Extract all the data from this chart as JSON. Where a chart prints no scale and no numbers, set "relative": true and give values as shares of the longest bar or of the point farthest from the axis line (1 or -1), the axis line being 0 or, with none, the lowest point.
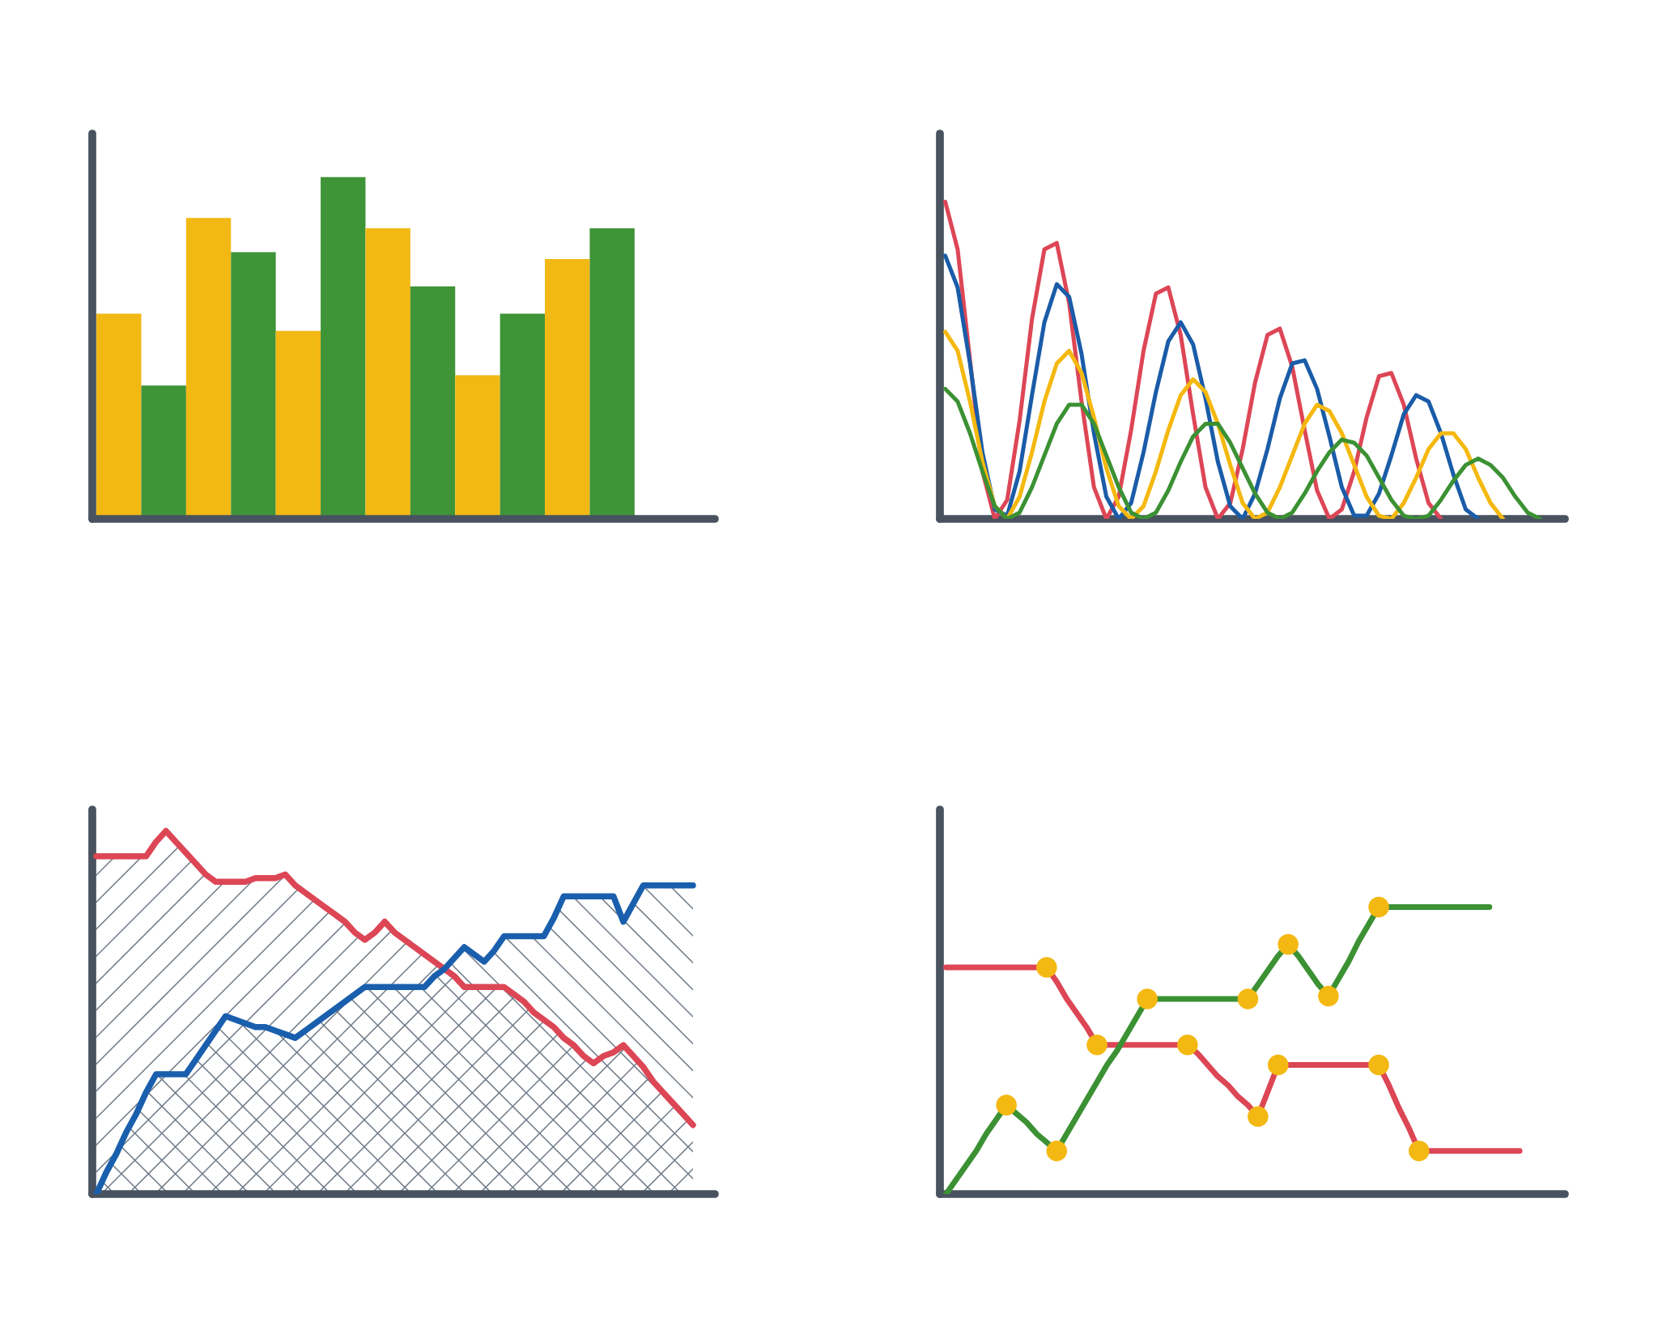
{
  "chart_data": [
    {
      "type": "bar",
      "relative": true,
      "categories": [
        null,
        null,
        null,
        null,
        null,
        null,
        null,
        null,
        null,
        null,
        null,
        null
      ],
      "values": [
        0.6,
        0.39,
        0.88,
        0.78,
        0.55,
        1.0,
        0.85,
        0.68,
        0.42,
        0.6,
        0.76,
        0.85
      ],
      "colors": [
        "#f2b813",
        "#3f9438",
        "#f2b813",
        "#3f9438",
        "#f2b813",
        "#3f9438",
        "#f2b813",
        "#3f9438",
        "#f2b813",
        "#3f9438",
        "#f2b813",
        "#3f9438"
      ]
    },
    {
      "type": "line",
      "relative": true,
      "categories": [
        null,
        null,
        null,
        null,
        null,
        null,
        null,
        null,
        null,
        null,
        null,
        null,
        null,
        null,
        null,
        null,
        null,
        null,
        null,
        null,
        null,
        null,
        null,
        null,
        null,
        null,
        null,
        null,
        null,
        null,
        null,
        null,
        null,
        null,
        null,
        null,
        null,
        null,
        null,
        null,
        null,
        null,
        null,
        null,
        null,
        null,
        null,
        null,
        null
      ],
      "series": [
        {
          "color": "#dd4656",
          "values": [
            1.0,
            0.85,
            0.5,
            0.15,
            0.0,
            0.06,
            0.31,
            0.63,
            0.85,
            0.87,
            0.68,
            0.37,
            0.1,
            0.0,
            0.07,
            0.28,
            0.53,
            0.71,
            0.73,
            0.58,
            0.33,
            0.1,
            0.0,
            0.05,
            0.22,
            0.43,
            0.58,
            0.6,
            0.48,
            0.28,
            0.09,
            0.0,
            0.03,
            0.15,
            0.32,
            0.45,
            0.46,
            0.36,
            0.19,
            0.05,
            0.0,
            null,
            null,
            null,
            null,
            null,
            null,
            null,
            null
          ]
        },
        {
          "color": "#1a5ca8",
          "values": [
            0.83,
            0.73,
            0.49,
            0.21,
            0.03,
            0.01,
            0.15,
            0.39,
            0.62,
            0.74,
            0.7,
            0.52,
            0.27,
            0.07,
            0.0,
            0.05,
            0.21,
            0.4,
            0.56,
            0.62,
            0.55,
            0.38,
            0.18,
            0.04,
            0.0,
            0.08,
            0.22,
            0.38,
            0.49,
            0.5,
            0.41,
            0.26,
            0.1,
            0.01,
            0.01,
            0.08,
            0.2,
            0.33,
            0.39,
            0.37,
            0.27,
            0.14,
            0.03,
            0.0,
            null,
            null,
            null,
            null,
            null
          ]
        },
        {
          "color": "#f4b80f",
          "values": [
            0.59,
            0.53,
            0.37,
            0.18,
            0.04,
            0.0,
            0.07,
            0.21,
            0.37,
            0.49,
            0.53,
            0.46,
            0.32,
            0.16,
            0.04,
            0.0,
            0.04,
            0.15,
            0.28,
            0.39,
            0.44,
            0.4,
            0.3,
            0.17,
            0.05,
            0.0,
            0.02,
            0.1,
            0.2,
            0.3,
            0.36,
            0.34,
            0.27,
            0.17,
            0.07,
            0.01,
            0.0,
            0.05,
            0.13,
            0.22,
            0.27,
            0.27,
            0.22,
            0.13,
            0.05,
            0.0,
            null,
            null,
            null
          ]
        },
        {
          "color": "#3b9133",
          "values": [
            0.41,
            0.37,
            0.27,
            0.15,
            0.04,
            0.0,
            0.02,
            0.1,
            0.2,
            0.3,
            0.36,
            0.36,
            0.3,
            0.2,
            0.1,
            0.02,
            0.0,
            0.02,
            0.09,
            0.18,
            0.26,
            0.3,
            0.3,
            0.24,
            0.16,
            0.08,
            0.02,
            0.0,
            0.02,
            0.08,
            0.15,
            0.21,
            0.25,
            0.24,
            0.2,
            0.13,
            0.06,
            0.01,
            0.0,
            0.01,
            0.06,
            0.12,
            0.17,
            0.19,
            0.17,
            0.13,
            0.07,
            0.02,
            0.0
          ]
        }
      ]
    },
    {
      "type": "area",
      "relative": true,
      "categories": [
        null,
        null,
        null,
        null,
        null,
        null,
        null,
        null,
        null,
        null,
        null,
        null,
        null,
        null,
        null,
        null,
        null,
        null,
        null,
        null,
        null,
        null,
        null,
        null,
        null,
        null,
        null,
        null,
        null,
        null,
        null,
        null,
        null,
        null,
        null,
        null,
        null,
        null,
        null,
        null,
        null,
        null,
        null,
        null,
        null,
        null,
        null,
        null,
        null,
        null,
        null,
        null,
        null,
        null,
        null,
        null,
        null,
        null,
        null,
        null,
        null
      ],
      "series": [
        {
          "color": "#dc4655",
          "values": [
            0.93,
            0.93,
            0.93,
            0.93,
            0.93,
            0.93,
            0.97,
            1.0,
            0.97,
            0.94,
            0.91,
            0.88,
            0.86,
            0.86,
            0.86,
            0.86,
            0.87,
            0.87,
            0.87,
            0.88,
            0.85,
            0.83,
            0.81,
            0.79,
            0.77,
            0.75,
            0.72,
            0.7,
            0.72,
            0.75,
            0.72,
            0.7,
            0.68,
            0.66,
            0.64,
            0.62,
            0.6,
            0.57,
            0.57,
            0.57,
            0.57,
            0.57,
            0.55,
            0.53,
            0.5,
            0.48,
            0.46,
            0.43,
            0.41,
            0.38,
            0.36,
            0.38,
            0.39,
            0.41,
            0.38,
            0.35,
            0.31,
            0.28,
            0.25,
            0.22,
            0.19
          ]
        },
        {
          "color": "#1a5fad",
          "values": [
            0.0,
            0.06,
            0.11,
            0.17,
            0.22,
            0.28,
            0.33,
            0.33,
            0.33,
            0.33,
            0.37,
            0.41,
            0.45,
            0.49,
            0.48,
            0.47,
            0.46,
            0.46,
            0.45,
            0.44,
            0.43,
            0.45,
            0.47,
            0.49,
            0.51,
            0.53,
            0.55,
            0.57,
            0.57,
            0.57,
            0.57,
            0.57,
            0.57,
            0.57,
            0.6,
            0.62,
            0.65,
            0.68,
            0.66,
            0.64,
            0.67,
            0.71,
            0.71,
            0.71,
            0.71,
            0.71,
            0.76,
            0.82,
            0.82,
            0.82,
            0.82,
            0.82,
            0.82,
            0.75,
            0.8,
            0.85,
            0.85,
            0.85,
            0.85,
            0.85,
            0.85
          ]
        }
      ]
    },
    {
      "type": "line",
      "relative": true,
      "categories": [
        null,
        null,
        null,
        null,
        null,
        null,
        null,
        null,
        null,
        null,
        null,
        null,
        null,
        null,
        null,
        null,
        null,
        null,
        null,
        null,
        null,
        null,
        null,
        null,
        null,
        null,
        null,
        null,
        null,
        null,
        null,
        null,
        null,
        null,
        null,
        null,
        null,
        null,
        null,
        null,
        null,
        null,
        null,
        null,
        null,
        null,
        null,
        null,
        null,
        null,
        null,
        null,
        null,
        null,
        null,
        null,
        null,
        null
      ],
      "series": [
        {
          "color": "#dc4655",
          "values": [
            0.79,
            0.79,
            0.79,
            0.79,
            0.79,
            0.79,
            0.79,
            0.79,
            0.79,
            0.79,
            0.79,
            0.74,
            0.68,
            0.63,
            0.58,
            0.52,
            0.52,
            0.52,
            0.52,
            0.52,
            0.52,
            0.52,
            0.52,
            0.52,
            0.52,
            0.49,
            0.45,
            0.41,
            0.38,
            0.34,
            0.31,
            0.27,
            0.36,
            0.45,
            0.45,
            0.45,
            0.45,
            0.45,
            0.45,
            0.45,
            0.45,
            0.45,
            0.45,
            0.45,
            0.38,
            0.3,
            0.23,
            0.15,
            0.15,
            0.15,
            0.15,
            0.15,
            0.15,
            0.15,
            0.15,
            0.15,
            0.15,
            0.15
          ],
          "colors": [
            null,
            null,
            null,
            null,
            null,
            null,
            null,
            null,
            null,
            null,
            "#f3b812",
            null,
            null,
            null,
            null,
            "#f3b812",
            null,
            null,
            null,
            null,
            null,
            null,
            null,
            null,
            "#f3b812",
            null,
            null,
            null,
            null,
            null,
            null,
            "#f3b812",
            null,
            "#f3b812",
            null,
            null,
            null,
            null,
            null,
            null,
            null,
            null,
            null,
            "#f3b812",
            null,
            null,
            null,
            "#f3b812",
            null,
            null,
            null,
            null,
            null,
            null,
            null,
            null,
            null,
            null
          ]
        },
        {
          "color": "#3b9133",
          "values": [
            0.0,
            0.05,
            0.1,
            0.15,
            0.21,
            0.26,
            0.31,
            0.28,
            0.25,
            0.21,
            0.18,
            0.15,
            0.21,
            0.27,
            0.33,
            0.39,
            0.45,
            0.5,
            0.56,
            0.62,
            0.68,
            0.68,
            0.68,
            0.68,
            0.68,
            0.68,
            0.68,
            0.68,
            0.68,
            0.68,
            0.68,
            0.73,
            0.78,
            0.83,
            0.87,
            0.83,
            0.78,
            0.73,
            0.69,
            0.75,
            0.81,
            0.88,
            0.94,
            1.0,
            1.0,
            1.0,
            1.0,
            1.0,
            1.0,
            1.0,
            1.0,
            1.0,
            1.0,
            1.0,
            1.0,
            null,
            null,
            null
          ],
          "colors": [
            null,
            null,
            null,
            null,
            null,
            null,
            "#f3b812",
            null,
            null,
            null,
            null,
            "#f3b812",
            null,
            null,
            null,
            null,
            null,
            null,
            null,
            null,
            "#f3b812",
            null,
            null,
            null,
            null,
            null,
            null,
            null,
            null,
            null,
            "#f3b812",
            null,
            null,
            null,
            "#f3b812",
            null,
            null,
            null,
            "#f3b812",
            null,
            null,
            null,
            null,
            "#f3b812",
            null,
            null,
            null,
            null,
            null,
            null,
            null,
            null,
            null,
            null,
            null,
            null,
            null,
            null
          ]
        }
      ]
    }
  ]
}
